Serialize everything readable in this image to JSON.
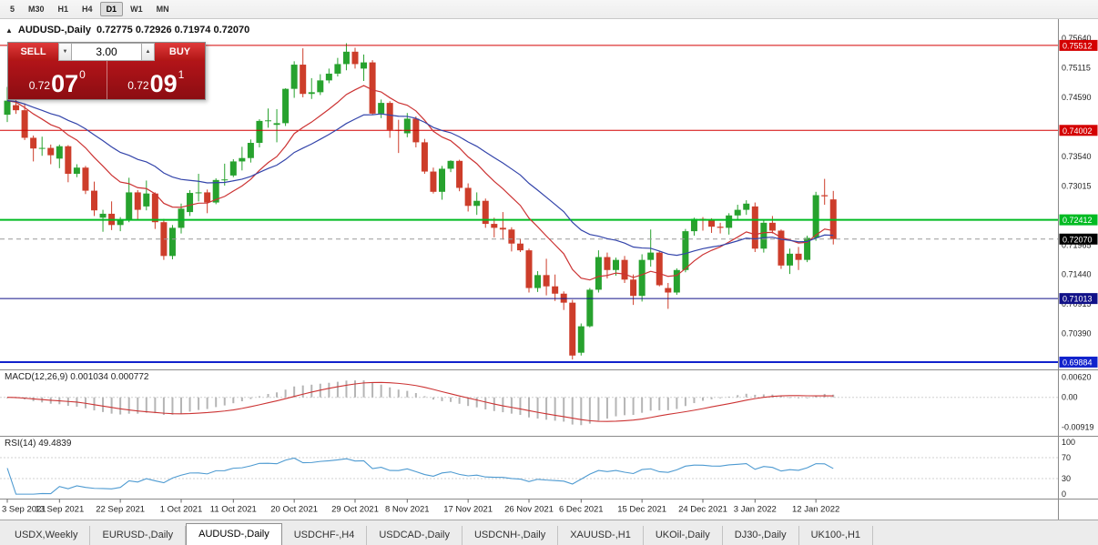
{
  "toolbar": {
    "timeframes": [
      "5",
      "M30",
      "H1",
      "H4",
      "D1",
      "W1",
      "MN"
    ],
    "active_timeframe": "D1"
  },
  "chart": {
    "collapse_icon": "▲",
    "title": "AUDUSD-,Daily",
    "ohlc_text": "0.72775 0.72926 0.71974 0.72070"
  },
  "trade_panel": {
    "sell_label": "SELL",
    "buy_label": "BUY",
    "volume": "3.00",
    "volume_down_icon": "▼",
    "volume_up_icon": "▲",
    "sell_price": {
      "base": "0.72",
      "big": "07",
      "sup": "0"
    },
    "buy_price": {
      "base": "0.72",
      "big": "09",
      "sup": "1"
    }
  },
  "tabs": {
    "active": "AUDUSD-,Daily",
    "items": [
      "USDX,Weekly",
      "EURUSD-,Daily",
      "AUDUSD-,Daily",
      "USDCHF-,H4",
      "USDCAD-,Daily",
      "USDCNH-,Daily",
      "XAUUSD-,H1",
      "UKOil-,Daily",
      "DJ30-,Daily",
      "UK100-,H1"
    ]
  },
  "colors": {
    "candle_up": "#27a22e",
    "candle_down": "#cd3d2a",
    "macd_hist": "#b5b5b5",
    "macd_signal": "#cc3333",
    "rsi_line": "#4d9ad1",
    "axis_text": "#222222",
    "separator": "#8a8a8a",
    "current_price_line": "#999999"
  },
  "chart_data": {
    "type": "candlestick",
    "symbol": "AUDUSD-",
    "timeframe": "Daily",
    "price_range": [
      0.6977,
      0.7585
    ],
    "axis_ticks": [
      0.7564,
      0.75115,
      0.7459,
      0.7354,
      0.73015,
      0.71965,
      0.7144,
      0.70915,
      0.7039
    ],
    "levels": [
      {
        "price": 0.75512,
        "color": "#d40000",
        "width": 1
      },
      {
        "price": 0.74002,
        "color": "#d40000",
        "width": 1
      },
      {
        "price": 0.72412,
        "color": "#00bb22",
        "width": 2
      },
      {
        "price": 0.71013,
        "color": "#111188",
        "width": 1
      },
      {
        "price": 0.69884,
        "color": "#1122cc",
        "width": 2
      }
    ],
    "current_price": 0.7207,
    "current_price_label_color": "#000000",
    "moving_averages": [
      {
        "period": 12,
        "method": "ema",
        "color": "#cc3333"
      },
      {
        "period": 26,
        "method": "ema",
        "color": "#3344aa"
      }
    ],
    "macd": {
      "fast": 12,
      "slow": 26,
      "signal": 9,
      "label": "MACD(12,26,9) 0.001034 0.000772",
      "range": [
        -0.011,
        0.0072
      ],
      "axis_labels": [
        {
          "v": 0.0062,
          "text": "0.00620"
        },
        {
          "v": 0,
          "text": "0.00"
        },
        {
          "v": -0.00919,
          "text": "-0.00919"
        }
      ]
    },
    "rsi": {
      "period": 14,
      "label": "RSI(14) 49.4839",
      "levels": [
        70,
        30
      ],
      "range": [
        -5,
        105
      ],
      "axis_labels": [
        {
          "v": 100,
          "text": "100"
        },
        {
          "v": 70,
          "text": "70"
        },
        {
          "v": 30,
          "text": "30"
        },
        {
          "v": 0,
          "text": "0"
        }
      ]
    },
    "x_ticks": [
      {
        "index": 0,
        "label": "3 Sep 2021"
      },
      {
        "index": 6,
        "label": "13 Sep 2021"
      },
      {
        "index": 13,
        "label": "22 Sep 2021"
      },
      {
        "index": 20,
        "label": "1 Oct 2021"
      },
      {
        "index": 26,
        "label": "11 Oct 2021"
      },
      {
        "index": 33,
        "label": "20 Oct 2021"
      },
      {
        "index": 40,
        "label": "29 Oct 2021"
      },
      {
        "index": 46,
        "label": "8 Nov 2021"
      },
      {
        "index": 53,
        "label": "17 Nov 2021"
      },
      {
        "index": 60,
        "label": "26 Nov 2021"
      },
      {
        "index": 66,
        "label": "6 Dec 2021"
      },
      {
        "index": 73,
        "label": "15 Dec 2021"
      },
      {
        "index": 80,
        "label": "24 Dec 2021"
      },
      {
        "index": 86,
        "label": "3 Jan 2022"
      },
      {
        "index": 93,
        "label": "12 Jan 2022"
      }
    ],
    "candles": [
      [
        0.7428,
        0.74775,
        0.7415,
        0.7453
      ],
      [
        0.7445,
        0.7462,
        0.74295,
        0.7436
      ],
      [
        0.7436,
        0.7448,
        0.7383,
        0.7387
      ],
      [
        0.7387,
        0.7391,
        0.7345,
        0.7368
      ],
      [
        0.7368,
        0.7389,
        0.7355,
        0.7369
      ],
      [
        0.7369,
        0.7375,
        0.734,
        0.7356
      ],
      [
        0.735,
        0.7375,
        0.7333,
        0.7372
      ],
      [
        0.7372,
        0.7374,
        0.7308,
        0.7323
      ],
      [
        0.7323,
        0.734,
        0.7317,
        0.7334
      ],
      [
        0.7334,
        0.7337,
        0.7287,
        0.7293
      ],
      [
        0.7293,
        0.7309,
        0.7248,
        0.7258
      ],
      [
        0.7245,
        0.7259,
        0.722,
        0.7252
      ],
      [
        0.7252,
        0.7274,
        0.7223,
        0.7232
      ],
      [
        0.7232,
        0.7246,
        0.7221,
        0.7241
      ],
      [
        0.7241,
        0.7316,
        0.7237,
        0.729
      ],
      [
        0.729,
        0.7294,
        0.724,
        0.7259
      ],
      [
        0.7265,
        0.7311,
        0.7258,
        0.7288
      ],
      [
        0.7288,
        0.729,
        0.7225,
        0.7237
      ],
      [
        0.7237,
        0.7243,
        0.717,
        0.7177
      ],
      [
        0.7177,
        0.7232,
        0.7171,
        0.7227
      ],
      [
        0.7227,
        0.727,
        0.7217,
        0.7261
      ],
      [
        0.7255,
        0.7294,
        0.7248,
        0.7289
      ],
      [
        0.7289,
        0.7323,
        0.7274,
        0.729
      ],
      [
        0.729,
        0.7295,
        0.7253,
        0.7272
      ],
      [
        0.7272,
        0.7315,
        0.7269,
        0.7312
      ],
      [
        0.7312,
        0.7341,
        0.7302,
        0.7313
      ],
      [
        0.732,
        0.7349,
        0.7317,
        0.7345
      ],
      [
        0.7345,
        0.7371,
        0.7329,
        0.7351
      ],
      [
        0.7351,
        0.7384,
        0.7343,
        0.7378
      ],
      [
        0.7378,
        0.742,
        0.737,
        0.7417
      ],
      [
        0.7417,
        0.7439,
        0.7405,
        0.7418
      ],
      [
        0.741,
        0.7438,
        0.7379,
        0.7413
      ],
      [
        0.7413,
        0.7475,
        0.7408,
        0.7474
      ],
      [
        0.7474,
        0.7523,
        0.7458,
        0.7517
      ],
      [
        0.7517,
        0.7546,
        0.7459,
        0.7465
      ],
      [
        0.7465,
        0.7493,
        0.7456,
        0.7468
      ],
      [
        0.7468,
        0.75,
        0.7463,
        0.7489
      ],
      [
        0.7489,
        0.751,
        0.7484,
        0.7501
      ],
      [
        0.7501,
        0.7529,
        0.7496,
        0.7518
      ],
      [
        0.7518,
        0.7555,
        0.7507,
        0.754
      ],
      [
        0.754,
        0.7547,
        0.751,
        0.7518
      ],
      [
        0.751,
        0.7535,
        0.7488,
        0.7521
      ],
      [
        0.7521,
        0.7525,
        0.7428,
        0.743
      ],
      [
        0.743,
        0.7455,
        0.7422,
        0.7449
      ],
      [
        0.7449,
        0.7452,
        0.7387,
        0.7401
      ],
      [
        0.7401,
        0.7419,
        0.736,
        0.74
      ],
      [
        0.7395,
        0.7431,
        0.7388,
        0.7421
      ],
      [
        0.7421,
        0.7425,
        0.737,
        0.7379
      ],
      [
        0.7379,
        0.7385,
        0.7323,
        0.7327
      ],
      [
        0.7327,
        0.7334,
        0.7288,
        0.7291
      ],
      [
        0.7291,
        0.7337,
        0.7277,
        0.7332
      ],
      [
        0.7332,
        0.7347,
        0.7326,
        0.7346
      ],
      [
        0.7346,
        0.7348,
        0.7292,
        0.7298
      ],
      [
        0.7298,
        0.7306,
        0.7256,
        0.7266
      ],
      [
        0.7266,
        0.729,
        0.725,
        0.7275
      ],
      [
        0.7275,
        0.7279,
        0.7227,
        0.7234
      ],
      [
        0.7234,
        0.7245,
        0.721,
        0.7227
      ],
      [
        0.7227,
        0.7255,
        0.7206,
        0.7224
      ],
      [
        0.7224,
        0.7228,
        0.7185,
        0.7199
      ],
      [
        0.7199,
        0.7208,
        0.7184,
        0.7187
      ],
      [
        0.7187,
        0.719,
        0.7112,
        0.712
      ],
      [
        0.712,
        0.715,
        0.7113,
        0.7143
      ],
      [
        0.7143,
        0.7172,
        0.7107,
        0.7123
      ],
      [
        0.7123,
        0.7144,
        0.7097,
        0.711
      ],
      [
        0.711,
        0.7114,
        0.7081,
        0.7094
      ],
      [
        0.7094,
        0.7099,
        0.6993,
        0.7
      ],
      [
        0.7005,
        0.7057,
        0.7,
        0.7052
      ],
      [
        0.7052,
        0.712,
        0.705,
        0.7117
      ],
      [
        0.7117,
        0.7187,
        0.7112,
        0.7175
      ],
      [
        0.7175,
        0.7183,
        0.7137,
        0.7152
      ],
      [
        0.7152,
        0.7174,
        0.7142,
        0.717
      ],
      [
        0.717,
        0.7177,
        0.7129,
        0.7135
      ],
      [
        0.7135,
        0.7144,
        0.709,
        0.7106
      ],
      [
        0.7106,
        0.718,
        0.7096,
        0.717
      ],
      [
        0.717,
        0.7224,
        0.7158,
        0.7183
      ],
      [
        0.7183,
        0.7186,
        0.7123,
        0.7125
      ],
      [
        0.712,
        0.7129,
        0.7083,
        0.7112
      ],
      [
        0.7112,
        0.7155,
        0.7108,
        0.7152
      ],
      [
        0.7152,
        0.7225,
        0.7148,
        0.7221
      ],
      [
        0.7221,
        0.7245,
        0.7213,
        0.7243
      ],
      [
        0.7243,
        0.7246,
        0.7222,
        0.7241
      ],
      [
        0.7241,
        0.7244,
        0.7218,
        0.7229
      ],
      [
        0.7229,
        0.7236,
        0.7217,
        0.7227
      ],
      [
        0.7227,
        0.7253,
        0.7215,
        0.7249
      ],
      [
        0.7249,
        0.7268,
        0.724,
        0.7259
      ],
      [
        0.7259,
        0.7276,
        0.725,
        0.727
      ],
      [
        0.7265,
        0.7272,
        0.7184,
        0.719
      ],
      [
        0.719,
        0.7241,
        0.7183,
        0.7236
      ],
      [
        0.7236,
        0.7248,
        0.7217,
        0.7222
      ],
      [
        0.7222,
        0.7224,
        0.7154,
        0.716
      ],
      [
        0.716,
        0.719,
        0.7145,
        0.7181
      ],
      [
        0.7181,
        0.7193,
        0.7152,
        0.717
      ],
      [
        0.717,
        0.7213,
        0.7166,
        0.7209
      ],
      [
        0.7209,
        0.7291,
        0.7204,
        0.7285
      ],
      [
        0.7285,
        0.7314,
        0.7268,
        0.7283
      ],
      [
        0.72775,
        0.72926,
        0.71974,
        0.7207
      ]
    ]
  }
}
